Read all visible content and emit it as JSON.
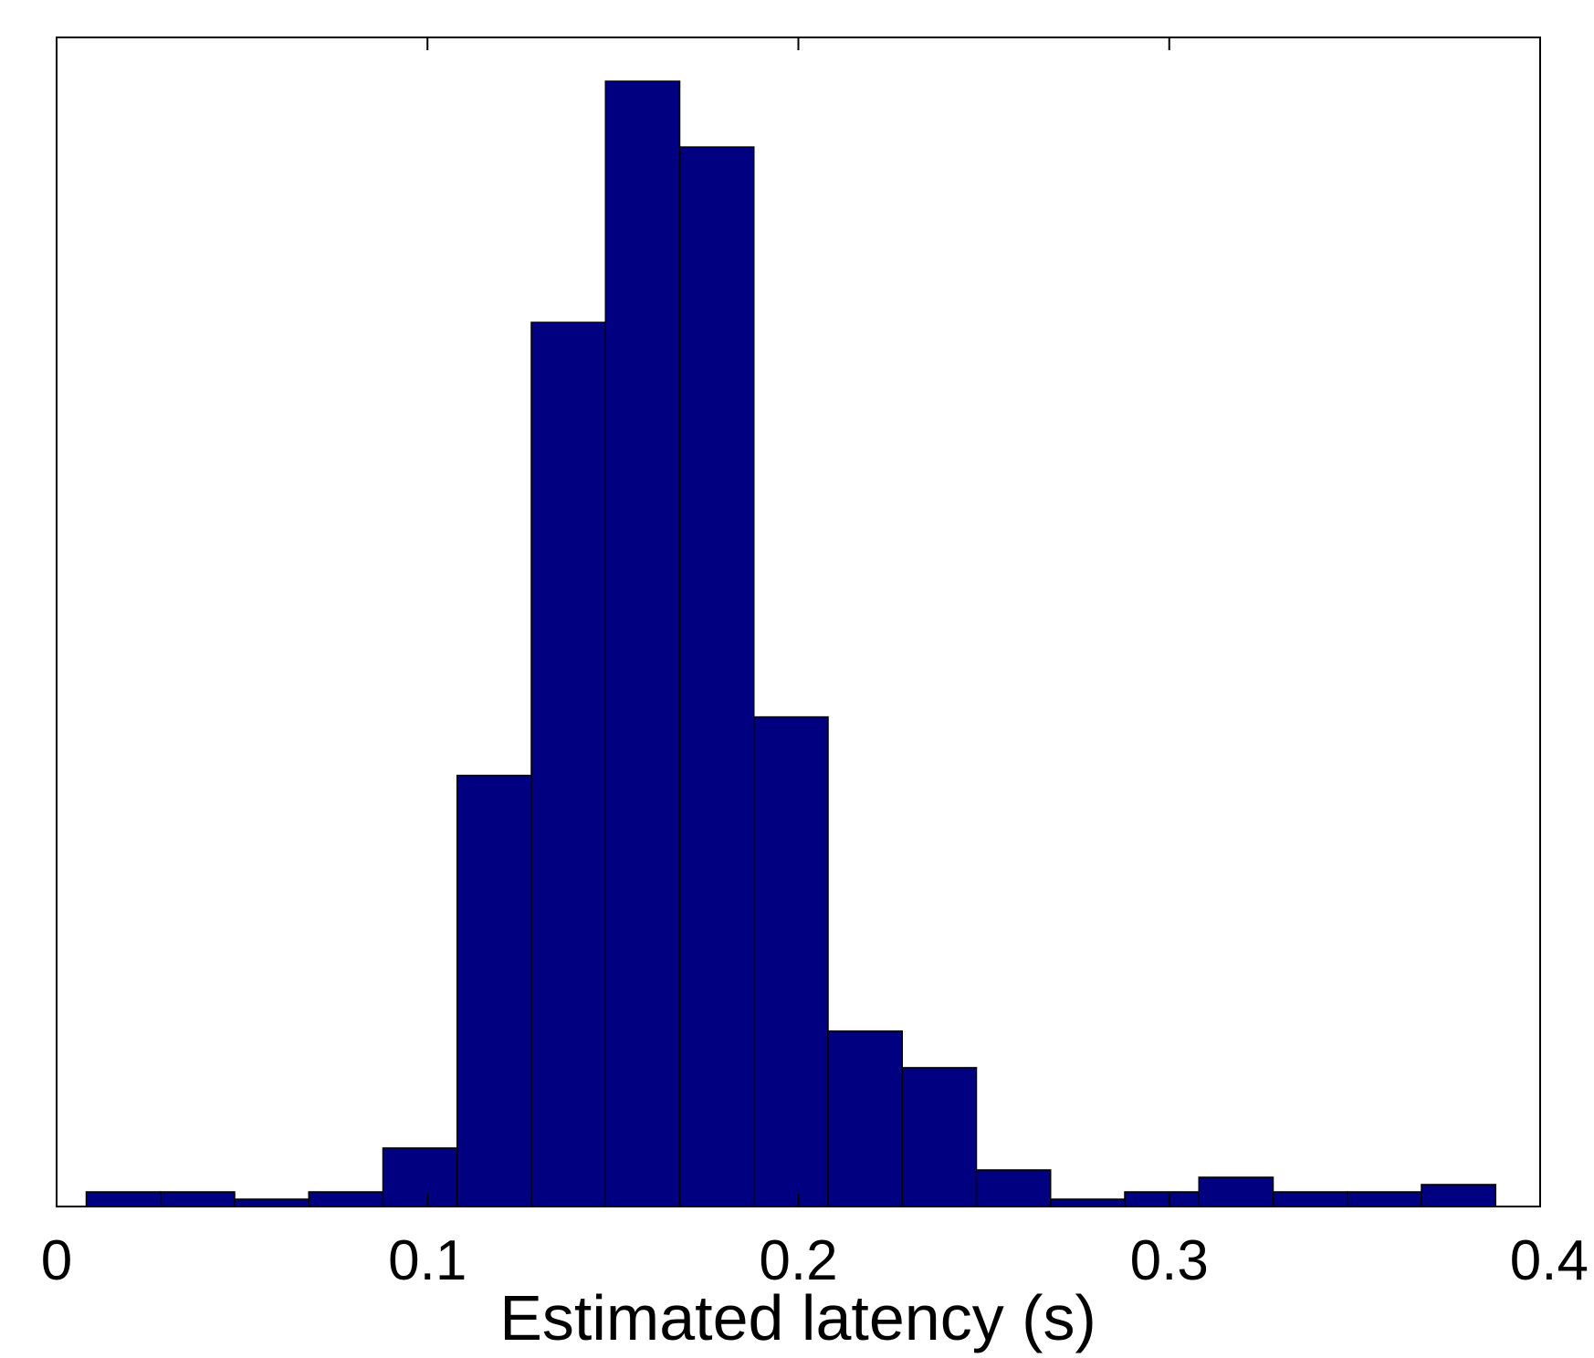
{
  "chart_data": {
    "type": "bar",
    "title": "",
    "xlabel": "Estimated latency (s)",
    "ylabel": "",
    "xlim": [
      0,
      0.4
    ],
    "xticks": [
      {
        "value": 0,
        "label": "0"
      },
      {
        "value": 0.1,
        "label": "0.1"
      },
      {
        "value": 0.2,
        "label": "0.2"
      },
      {
        "value": 0.3,
        "label": "0.3"
      },
      {
        "value": 0.4,
        "label": "0.4"
      }
    ],
    "y_ticks_shown": false,
    "grid": false,
    "bar_color": "#000080",
    "bar_edge_color": "#000000",
    "bins": [
      {
        "x0": 0.008,
        "x1": 0.028,
        "value": 2
      },
      {
        "x0": 0.028,
        "x1": 0.048,
        "value": 2
      },
      {
        "x0": 0.048,
        "x1": 0.068,
        "value": 1
      },
      {
        "x0": 0.068,
        "x1": 0.088,
        "value": 2
      },
      {
        "x0": 0.088,
        "x1": 0.108,
        "value": 8
      },
      {
        "x0": 0.108,
        "x1": 0.128,
        "value": 59
      },
      {
        "x0": 0.128,
        "x1": 0.148,
        "value": 121
      },
      {
        "x0": 0.148,
        "x1": 0.168,
        "value": 154
      },
      {
        "x0": 0.168,
        "x1": 0.188,
        "value": 145
      },
      {
        "x0": 0.188,
        "x1": 0.208,
        "value": 67
      },
      {
        "x0": 0.208,
        "x1": 0.228,
        "value": 24
      },
      {
        "x0": 0.228,
        "x1": 0.248,
        "value": 19
      },
      {
        "x0": 0.248,
        "x1": 0.268,
        "value": 5
      },
      {
        "x0": 0.268,
        "x1": 0.288,
        "value": 1
      },
      {
        "x0": 0.288,
        "x1": 0.308,
        "value": 2
      },
      {
        "x0": 0.308,
        "x1": 0.328,
        "value": 4
      },
      {
        "x0": 0.328,
        "x1": 0.348,
        "value": 2
      },
      {
        "x0": 0.348,
        "x1": 0.368,
        "value": 2
      },
      {
        "x0": 0.368,
        "x1": 0.388,
        "value": 3
      }
    ],
    "ylim": [
      0,
      160
    ]
  }
}
